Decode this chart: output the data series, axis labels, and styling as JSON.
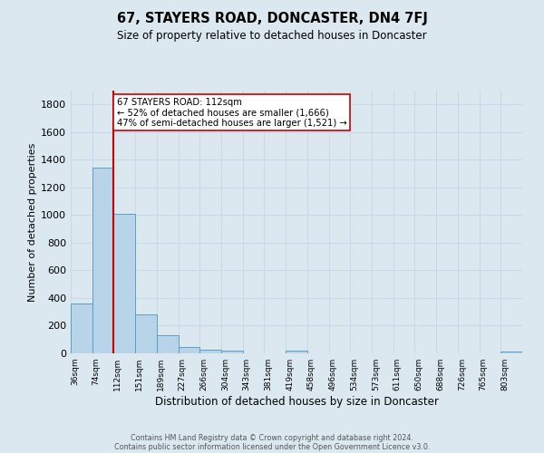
{
  "title": "67, STAYERS ROAD, DONCASTER, DN4 7FJ",
  "subtitle": "Size of property relative to detached houses in Doncaster",
  "xlabel": "Distribution of detached houses by size in Doncaster",
  "ylabel": "Number of detached properties",
  "bin_labels": [
    "36sqm",
    "74sqm",
    "112sqm",
    "151sqm",
    "189sqm",
    "227sqm",
    "266sqm",
    "304sqm",
    "343sqm",
    "381sqm",
    "419sqm",
    "458sqm",
    "496sqm",
    "534sqm",
    "573sqm",
    "611sqm",
    "650sqm",
    "688sqm",
    "726sqm",
    "765sqm",
    "803sqm"
  ],
  "bar_values": [
    360,
    1340,
    1010,
    285,
    130,
    45,
    25,
    20,
    0,
    0,
    20,
    0,
    0,
    0,
    0,
    0,
    0,
    0,
    0,
    0,
    15
  ],
  "bar_color": "#b8d4e8",
  "bar_edge_color": "#5a9ec4",
  "red_line_index": 2,
  "red_line_color": "#cc0000",
  "annotation_line1": "67 STAYERS ROAD: 112sqm",
  "annotation_line2": "← 52% of detached houses are smaller (1,666)",
  "annotation_line3": "47% of semi-detached houses are larger (1,521) →",
  "annotation_box_color": "#ffffff",
  "annotation_box_edge_color": "#cc0000",
  "ylim": [
    0,
    1900
  ],
  "yticks": [
    0,
    200,
    400,
    600,
    800,
    1000,
    1200,
    1400,
    1600,
    1800
  ],
  "grid_color": "#c8d8e8",
  "background_color": "#dce8f0",
  "footer_line1": "Contains HM Land Registry data © Crown copyright and database right 2024.",
  "footer_line2": "Contains public sector information licensed under the Open Government Licence v3.0."
}
